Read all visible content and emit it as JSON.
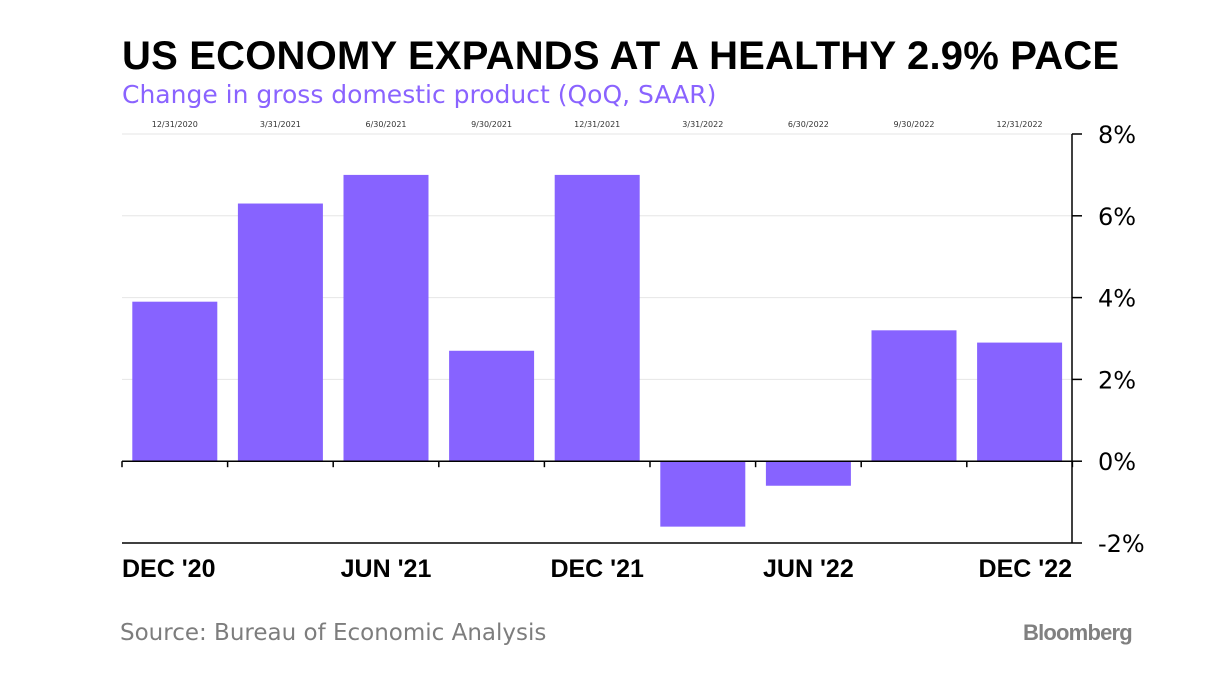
{
  "title": "US ECONOMY EXPANDS AT A HEALTHY 2.9% PACE",
  "subtitle": "Change in gross domestic product (QoQ, SAAR)",
  "source": "Source: Bureau of Economic Analysis",
  "logo": "Bloomberg",
  "colors": {
    "bar": "#8763ff",
    "subtitle": "#8a63ff",
    "grid": "#e6e6e6",
    "axis": "#000000",
    "muted": "#7d7d7d"
  },
  "chart_data": {
    "type": "bar",
    "categories": [
      "12/31/2020",
      "3/31/2021",
      "6/30/2021",
      "9/30/2021",
      "12/31/2021",
      "3/31/2022",
      "6/30/2022",
      "9/30/2022",
      "12/31/2022"
    ],
    "values": [
      3.9,
      6.3,
      7.0,
      2.7,
      7.0,
      -1.6,
      -0.6,
      3.2,
      2.9
    ],
    "x_tick_labels": [
      {
        "index": 0,
        "label": "DEC '20"
      },
      {
        "index": 2,
        "label": "JUN '21"
      },
      {
        "index": 4,
        "label": "DEC '21"
      },
      {
        "index": 6,
        "label": "JUN '22"
      },
      {
        "index": 8,
        "label": "DEC '22"
      }
    ],
    "y_ticks": [
      -2,
      0,
      2,
      4,
      6,
      8
    ],
    "y_tick_labels": [
      "-2%",
      "0%",
      "2%",
      "4%",
      "6%",
      "8%"
    ],
    "ylim": [
      -2,
      8
    ],
    "y_axis_position": "right",
    "grid": true,
    "title": "US ECONOMY EXPANDS AT A HEALTHY 2.9% PACE",
    "subtitle": "Change in gross domestic product (QoQ, SAAR)",
    "xlabel": "",
    "ylabel": ""
  }
}
